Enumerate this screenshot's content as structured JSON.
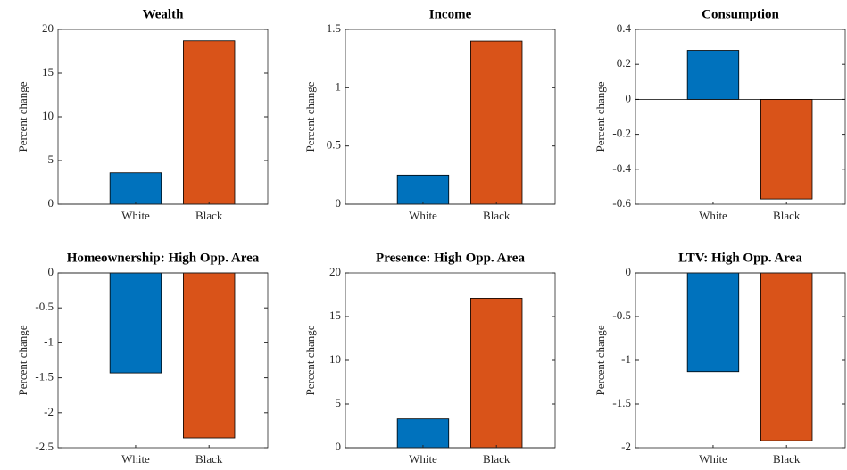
{
  "chart_data": [
    {
      "type": "bar",
      "title": "Wealth",
      "y_label": "Percent change",
      "categories": [
        "White",
        "Black"
      ],
      "values": [
        3.6,
        18.7
      ],
      "colors": [
        "#0072BD",
        "#D95319"
      ],
      "ylim": [
        0,
        20
      ],
      "yticks": [
        0,
        5,
        10,
        15,
        20
      ],
      "grid": false
    },
    {
      "type": "bar",
      "title": "Income",
      "y_label": "Percent change",
      "categories": [
        "White",
        "Black"
      ],
      "values": [
        0.25,
        1.4
      ],
      "colors": [
        "#0072BD",
        "#D95319"
      ],
      "ylim": [
        0,
        1.5
      ],
      "yticks": [
        0,
        0.5,
        1,
        1.5
      ],
      "grid": false
    },
    {
      "type": "bar",
      "title": "Consumption",
      "y_label": "Percent change",
      "categories": [
        "White",
        "Black"
      ],
      "values": [
        0.28,
        -0.57
      ],
      "colors": [
        "#0072BD",
        "#D95319"
      ],
      "ylim": [
        -0.6,
        0.4
      ],
      "yticks": [
        -0.6,
        -0.4,
        -0.2,
        0,
        0.2,
        0.4
      ],
      "grid": false
    },
    {
      "type": "bar",
      "title": "Homeownership: High Opp. Area",
      "y_label": "Percent change",
      "categories": [
        "White",
        "Black"
      ],
      "values": [
        -1.43,
        -2.36
      ],
      "colors": [
        "#0072BD",
        "#D95319"
      ],
      "ylim": [
        -2.5,
        0
      ],
      "yticks": [
        -2.5,
        -2,
        -1.5,
        -1,
        -0.5,
        0
      ],
      "grid": false
    },
    {
      "type": "bar",
      "title": "Presence: High Opp. Area",
      "y_label": "Percent change",
      "categories": [
        "White",
        "Black"
      ],
      "values": [
        3.3,
        17.1
      ],
      "colors": [
        "#0072BD",
        "#D95319"
      ],
      "ylim": [
        0,
        20
      ],
      "yticks": [
        0,
        5,
        10,
        15,
        20
      ],
      "grid": false
    },
    {
      "type": "bar",
      "title": "LTV: High Opp. Area",
      "y_label": "Percent change",
      "categories": [
        "White",
        "Black"
      ],
      "values": [
        -1.13,
        -1.92
      ],
      "colors": [
        "#0072BD",
        "#D95319"
      ],
      "ylim": [
        -2,
        0
      ],
      "yticks": [
        -2,
        -1.5,
        -1,
        -0.5,
        0
      ],
      "grid": false
    }
  ]
}
